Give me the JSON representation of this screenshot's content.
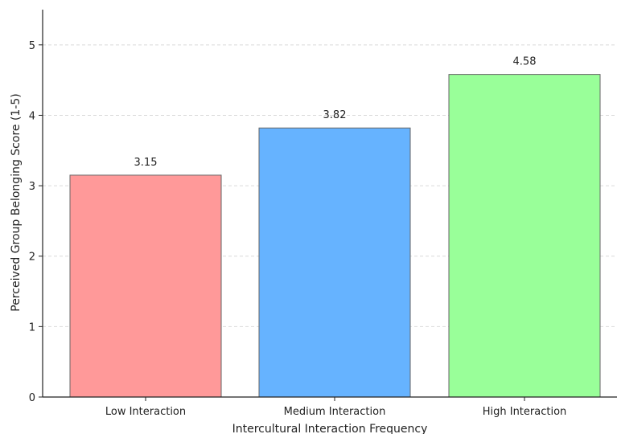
{
  "chart_data": {
    "type": "bar",
    "categories": [
      "Low Interaction",
      "Medium Interaction",
      "High Interaction"
    ],
    "values": [
      3.15,
      3.82,
      4.58
    ],
    "value_labels": [
      "3.15",
      "3.82",
      "4.58"
    ],
    "xlabel": "Intercultural Interaction Frequency",
    "ylabel": "Perceived Group Belonging Score (1-5)",
    "ylim": [
      0,
      5.5
    ],
    "yticks": [
      0,
      1,
      2,
      3,
      4,
      5
    ],
    "grid": "y-dashed",
    "colors": [
      "#ff9999",
      "#66b3ff",
      "#99ff99"
    ],
    "edge_color": "#666666",
    "grid_color": "#d9d9d9"
  }
}
